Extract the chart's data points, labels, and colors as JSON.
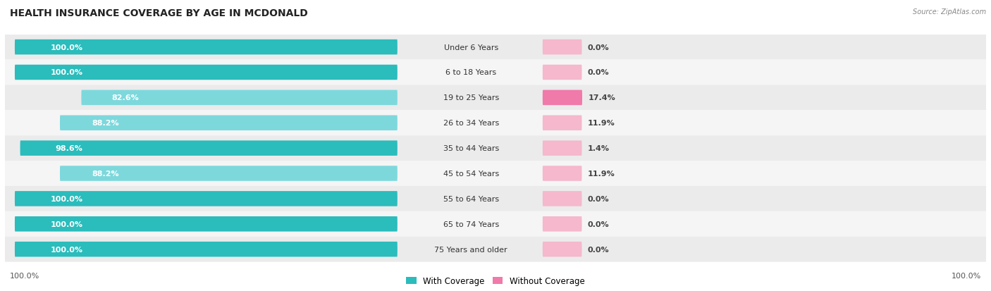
{
  "title": "HEALTH INSURANCE COVERAGE BY AGE IN MCDONALD",
  "source": "Source: ZipAtlas.com",
  "categories": [
    "Under 6 Years",
    "6 to 18 Years",
    "19 to 25 Years",
    "26 to 34 Years",
    "35 to 44 Years",
    "45 to 54 Years",
    "55 to 64 Years",
    "65 to 74 Years",
    "75 Years and older"
  ],
  "with_coverage": [
    100.0,
    100.0,
    82.6,
    88.2,
    98.6,
    88.2,
    100.0,
    100.0,
    100.0
  ],
  "without_coverage": [
    0.0,
    0.0,
    17.4,
    11.9,
    1.4,
    11.9,
    0.0,
    0.0,
    0.0
  ],
  "color_with_dark": "#2bbcbc",
  "color_with_light": "#7dd8dc",
  "color_without_dark": "#f07aaa",
  "color_without_light": "#f5b8cc",
  "row_bg_dark": "#ebebeb",
  "row_bg_light": "#f5f5f5",
  "title_fontsize": 10,
  "label_fontsize": 8,
  "cat_fontsize": 8,
  "tick_fontsize": 8,
  "legend_fontsize": 8.5,
  "figsize": [
    14.06,
    4.14
  ],
  "dpi": 100
}
